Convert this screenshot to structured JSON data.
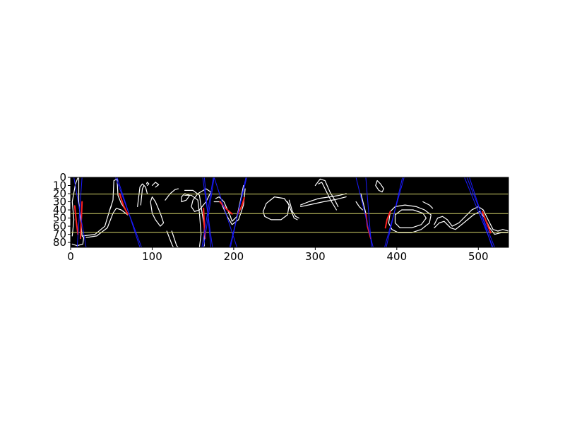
{
  "chart_data": {
    "type": "image",
    "title": "",
    "xlabel": "",
    "ylabel": "",
    "image_size": [
      537,
      86
    ],
    "xlim": [
      0,
      537
    ],
    "ylim": [
      86,
      0
    ],
    "x_ticks": [
      0,
      100,
      200,
      300,
      400,
      500
    ],
    "y_ticks": [
      0,
      10,
      20,
      30,
      40,
      50,
      60,
      70,
      80
    ],
    "y_inverted": true,
    "grid": false,
    "background_color": "#000000",
    "edge_color": "#ffffff",
    "guide_line_color": "#d4d46a",
    "slant_line_color": "#1a1aff",
    "highlight_color": "#ff2020",
    "horizontal_guides_y": [
      20.5,
      44.5,
      67.5
    ],
    "slant_lines": [
      {
        "x": [
          4,
          19
        ],
        "y": [
          0,
          86
        ]
      },
      {
        "x": [
          14,
          8
        ],
        "y": [
          0,
          86
        ]
      },
      {
        "x": [
          55,
          87
        ],
        "y": [
          0,
          86
        ]
      },
      {
        "x": [
          57,
          85
        ],
        "y": [
          0,
          86
        ]
      },
      {
        "x": [
          162,
          174
        ],
        "y": [
          0,
          86
        ]
      },
      {
        "x": [
          164,
          172
        ],
        "y": [
          0,
          86
        ]
      },
      {
        "x": [
          175,
          161
        ],
        "y": [
          0,
          86
        ]
      },
      {
        "x": [
          176,
          163
        ],
        "y": [
          0,
          86
        ]
      },
      {
        "x": [
          176,
          204
        ],
        "y": [
          0,
          86
        ]
      },
      {
        "x": [
          216,
          195
        ],
        "y": [
          0,
          86
        ]
      },
      {
        "x": [
          215,
          196
        ],
        "y": [
          0,
          86
        ]
      },
      {
        "x": [
          350,
          371
        ],
        "y": [
          0,
          86
        ]
      },
      {
        "x": [
          362,
          369
        ],
        "y": [
          0,
          86
        ]
      },
      {
        "x": [
          409,
          385
        ],
        "y": [
          0,
          86
        ]
      },
      {
        "x": [
          407,
          387
        ],
        "y": [
          0,
          86
        ]
      },
      {
        "x": [
          483,
          518
        ],
        "y": [
          0,
          86
        ]
      },
      {
        "x": [
          486,
          520
        ],
        "y": [
          0,
          86
        ]
      },
      {
        "x": [
          489,
          517
        ],
        "y": [
          0,
          86
        ]
      }
    ],
    "highlight_strokes": [
      [
        [
          5,
          35
        ],
        [
          7,
          55
        ],
        [
          9,
          70
        ]
      ],
      [
        [
          14,
          30
        ],
        [
          13,
          55
        ],
        [
          12,
          75
        ]
      ],
      [
        [
          60,
          20
        ],
        [
          65,
          35
        ],
        [
          70,
          45
        ]
      ],
      [
        [
          163,
          38
        ],
        [
          164,
          60
        ],
        [
          165,
          75
        ]
      ],
      [
        [
          183,
          30
        ],
        [
          190,
          38
        ],
        [
          198,
          45
        ]
      ],
      [
        [
          213,
          25
        ],
        [
          210,
          35
        ],
        [
          205,
          45
        ]
      ],
      [
        [
          362,
          45
        ],
        [
          364,
          60
        ],
        [
          368,
          75
        ]
      ],
      [
        [
          392,
          42
        ],
        [
          388,
          52
        ],
        [
          386,
          62
        ]
      ],
      [
        [
          505,
          42
        ],
        [
          510,
          55
        ],
        [
          515,
          68
        ]
      ]
    ],
    "edge_strokes": [
      [
        [
          2,
          72
        ],
        [
          4,
          52
        ],
        [
          2,
          30
        ],
        [
          6,
          8
        ],
        [
          9,
          0
        ]
      ],
      [
        [
          10,
          0
        ],
        [
          10,
          30
        ],
        [
          13,
          60
        ],
        [
          14,
          72
        ],
        [
          16,
          74
        ],
        [
          15,
          82
        ],
        [
          8,
          84
        ],
        [
          2,
          82
        ]
      ],
      [
        [
          15,
          72
        ],
        [
          30,
          70
        ],
        [
          42,
          60
        ],
        [
          48,
          40
        ],
        [
          50,
          35
        ]
      ],
      [
        [
          19,
          74
        ],
        [
          32,
          72
        ],
        [
          45,
          62
        ],
        [
          52,
          44
        ],
        [
          56,
          38
        ],
        [
          62,
          40
        ],
        [
          70,
          46
        ]
      ],
      [
        [
          48,
          40
        ],
        [
          52,
          28
        ],
        [
          53,
          4
        ],
        [
          57,
          2
        ],
        [
          58,
          22
        ],
        [
          62,
          32
        ],
        [
          70,
          44
        ]
      ],
      [
        [
          82,
          36
        ],
        [
          85,
          12
        ],
        [
          88,
          8
        ],
        [
          92,
          12
        ],
        [
          94,
          20
        ]
      ],
      [
        [
          86,
          34
        ],
        [
          88,
          14
        ],
        [
          90,
          10
        ]
      ],
      [
        [
          93,
          8
        ],
        [
          94,
          6
        ],
        [
          96,
          8
        ],
        [
          94,
          10
        ]
      ],
      [
        [
          100,
          10
        ],
        [
          104,
          6
        ],
        [
          108,
          9
        ],
        [
          104,
          12
        ]
      ],
      [
        [
          98,
          30
        ],
        [
          100,
          24
        ],
        [
          104,
          30
        ],
        [
          110,
          44
        ],
        [
          114,
          56
        ],
        [
          110,
          60
        ],
        [
          104,
          52
        ],
        [
          100,
          44
        ],
        [
          98,
          30
        ]
      ],
      [
        [
          116,
          28
        ],
        [
          122,
          20
        ],
        [
          128,
          15
        ],
        [
          132,
          14
        ]
      ],
      [
        [
          140,
          16
        ],
        [
          150,
          16
        ],
        [
          158,
          22
        ],
        [
          160,
          36
        ],
        [
          164,
          60
        ],
        [
          164,
          84
        ],
        [
          160,
          90
        ]
      ],
      [
        [
          140,
          22
        ],
        [
          148,
          22
        ],
        [
          156,
          28
        ],
        [
          158,
          44
        ],
        [
          160,
          70
        ],
        [
          158,
          86
        ]
      ],
      [
        [
          118,
          66
        ],
        [
          124,
          82
        ],
        [
          126,
          86
        ]
      ],
      [
        [
          124,
          66
        ],
        [
          130,
          84
        ],
        [
          132,
          86
        ]
      ],
      [
        [
          150,
          28
        ],
        [
          148,
          36
        ],
        [
          152,
          42
        ],
        [
          158,
          40
        ],
        [
          166,
          30
        ],
        [
          172,
          18
        ],
        [
          166,
          14
        ],
        [
          156,
          20
        ],
        [
          150,
          28
        ]
      ],
      [
        [
          136,
          24
        ],
        [
          140,
          20
        ],
        [
          146,
          22
        ],
        [
          142,
          28
        ],
        [
          136,
          30
        ],
        [
          136,
          24
        ]
      ],
      [
        [
          178,
          26
        ],
        [
          182,
          24
        ],
        [
          188,
          30
        ],
        [
          196,
          48
        ],
        [
          198,
          54
        ],
        [
          204,
          48
        ],
        [
          208,
          30
        ],
        [
          212,
          10
        ]
      ],
      [
        [
          176,
          30
        ],
        [
          184,
          30
        ],
        [
          192,
          48
        ],
        [
          198,
          58
        ],
        [
          206,
          52
        ],
        [
          212,
          34
        ],
        [
          214,
          14
        ]
      ],
      [
        [
          236,
          42
        ],
        [
          240,
          32
        ],
        [
          250,
          24
        ],
        [
          262,
          26
        ],
        [
          268,
          34
        ],
        [
          266,
          46
        ],
        [
          258,
          52
        ],
        [
          246,
          52
        ],
        [
          238,
          48
        ],
        [
          236,
          42
        ]
      ],
      [
        [
          266,
          30
        ],
        [
          270,
          40
        ],
        [
          274,
          50
        ],
        [
          278,
          52
        ]
      ],
      [
        [
          268,
          28
        ],
        [
          272,
          42
        ],
        [
          276,
          48
        ],
        [
          280,
          50
        ]
      ],
      [
        [
          282,
          34
        ],
        [
          292,
          30
        ],
        [
          304,
          26
        ],
        [
          318,
          24
        ],
        [
          330,
          22
        ],
        [
          338,
          20
        ]
      ],
      [
        [
          282,
          36
        ],
        [
          296,
          33
        ],
        [
          310,
          30
        ],
        [
          326,
          27
        ],
        [
          338,
          24
        ]
      ],
      [
        [
          300,
          10
        ],
        [
          306,
          2
        ],
        [
          312,
          4
        ],
        [
          318,
          18
        ],
        [
          324,
          28
        ],
        [
          328,
          36
        ]
      ],
      [
        [
          304,
          8
        ],
        [
          308,
          6
        ],
        [
          314,
          18
        ],
        [
          320,
          30
        ],
        [
          326,
          40
        ]
      ],
      [
        [
          350,
          30
        ],
        [
          354,
          36
        ],
        [
          358,
          40
        ]
      ],
      [
        [
          356,
          20
        ],
        [
          360,
          36
        ],
        [
          362,
          44
        ]
      ],
      [
        [
          376,
          4
        ],
        [
          380,
          8
        ],
        [
          384,
          14
        ],
        [
          382,
          18
        ],
        [
          378,
          16
        ],
        [
          374,
          10
        ],
        [
          376,
          4
        ]
      ],
      [
        [
          392,
          42
        ],
        [
          398,
          36
        ],
        [
          410,
          34
        ],
        [
          424,
          36
        ],
        [
          434,
          40
        ],
        [
          442,
          46
        ],
        [
          440,
          56
        ],
        [
          430,
          64
        ],
        [
          418,
          68
        ],
        [
          402,
          68
        ],
        [
          394,
          64
        ],
        [
          390,
          56
        ],
        [
          392,
          42
        ]
      ],
      [
        [
          398,
          46
        ],
        [
          406,
          40
        ],
        [
          420,
          40
        ],
        [
          432,
          44
        ],
        [
          436,
          50
        ],
        [
          430,
          58
        ],
        [
          418,
          62
        ],
        [
          404,
          62
        ],
        [
          398,
          56
        ],
        [
          398,
          46
        ]
      ],
      [
        [
          432,
          30
        ],
        [
          440,
          34
        ],
        [
          444,
          38
        ]
      ],
      [
        [
          446,
          58
        ],
        [
          450,
          50
        ],
        [
          456,
          48
        ],
        [
          462,
          52
        ],
        [
          468,
          60
        ],
        [
          476,
          56
        ],
        [
          484,
          48
        ],
        [
          492,
          40
        ],
        [
          500,
          36
        ],
        [
          506,
          40
        ],
        [
          512,
          52
        ],
        [
          518,
          64
        ],
        [
          524,
          66
        ],
        [
          530,
          64
        ],
        [
          537,
          66
        ]
      ],
      [
        [
          446,
          62
        ],
        [
          452,
          56
        ],
        [
          458,
          54
        ],
        [
          466,
          62
        ],
        [
          472,
          64
        ],
        [
          482,
          56
        ],
        [
          494,
          46
        ],
        [
          502,
          42
        ],
        [
          508,
          50
        ],
        [
          514,
          62
        ],
        [
          520,
          70
        ],
        [
          528,
          68
        ],
        [
          537,
          68
        ]
      ]
    ]
  }
}
